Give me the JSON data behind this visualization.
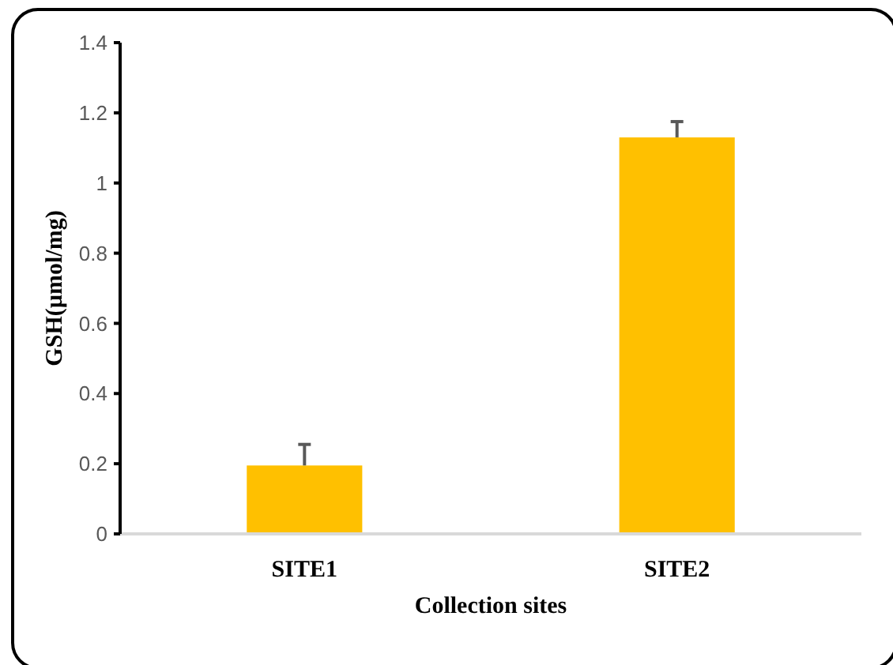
{
  "chart_data": {
    "type": "bar",
    "xlabel": "Collection sites",
    "ylabel": "GSH(µmol/mg)",
    "categories": [
      "SITE1",
      "SITE2"
    ],
    "values": [
      0.195,
      1.13
    ],
    "errors": [
      [
        0.195,
        0.255
      ],
      [
        1.13,
        1.175
      ]
    ],
    "color": "#ffc000",
    "ylim": [
      0,
      1.4
    ],
    "yticks": [
      0,
      0.2,
      0.4,
      0.6,
      0.8,
      1,
      1.2,
      1.4
    ],
    "grid": false
  }
}
